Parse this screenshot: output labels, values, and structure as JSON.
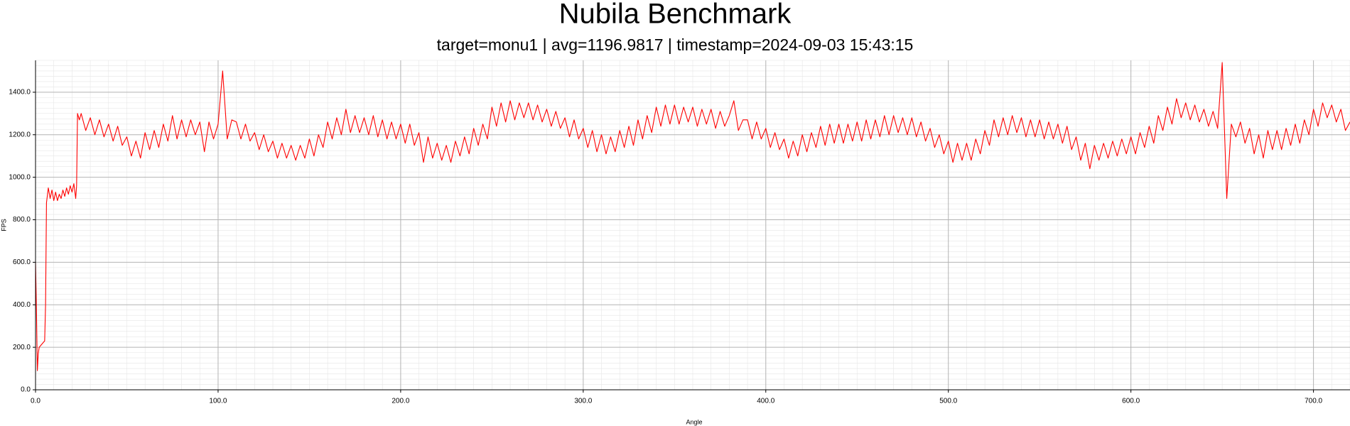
{
  "chart_data": {
    "type": "line",
    "title": "Nubila Benchmark",
    "subtitle": "target=monu1 | avg=1196.9817 | timestamp=2024-09-03 15:43:15",
    "x_label": "Angle",
    "y_label": "FPS",
    "color": "#ff0000",
    "grid": true,
    "xlim": [
      0,
      720
    ],
    "ylim": [
      0,
      1550
    ],
    "xticks": [
      {
        "value": 0,
        "label": "0.0"
      },
      {
        "value": 100,
        "label": "100.0"
      },
      {
        "value": 200,
        "label": "200.0"
      },
      {
        "value": 300,
        "label": "300.0"
      },
      {
        "value": 400,
        "label": "400.0"
      },
      {
        "value": 500,
        "label": "500.0"
      },
      {
        "value": 600,
        "label": "600.0"
      },
      {
        "value": 700,
        "label": "700.0"
      }
    ],
    "yticks": [
      {
        "value": 0,
        "label": "0.0"
      },
      {
        "value": 200,
        "label": "200.0"
      },
      {
        "value": 400,
        "label": "400.0"
      },
      {
        "value": 600,
        "label": "600.0"
      },
      {
        "value": 800,
        "label": "800.0"
      },
      {
        "value": 1000,
        "label": "1000.0"
      },
      {
        "value": 1200,
        "label": "1200.0"
      },
      {
        "value": 1400,
        "label": "1400.0"
      }
    ],
    "x": [
      0,
      0.5,
      1,
      1.5,
      2,
      3,
      4,
      5,
      5.5,
      6,
      7,
      8,
      9,
      10,
      11,
      12,
      13,
      14,
      15,
      16,
      17,
      18,
      19,
      20,
      21,
      22,
      22.5,
      23,
      24,
      25,
      27.5,
      30,
      32.5,
      35,
      37.5,
      40,
      42.5,
      45,
      47.5,
      50,
      52.5,
      55,
      57.5,
      60,
      62.5,
      65,
      67.5,
      70,
      72.5,
      75,
      77.5,
      80,
      82.5,
      85,
      87.5,
      90,
      92.5,
      95,
      97.5,
      100,
      102.5,
      105,
      107.5,
      110,
      112.5,
      115,
      117.5,
      120,
      122.5,
      125,
      127.5,
      130,
      132.5,
      135,
      137.5,
      140,
      142.5,
      145,
      147.5,
      150,
      152.5,
      155,
      157.5,
      160,
      162.5,
      165,
      167.5,
      170,
      172.5,
      175,
      177.5,
      180,
      182.5,
      185,
      187.5,
      190,
      192.5,
      195,
      197.5,
      200,
      202.5,
      205,
      207.5,
      210,
      212.5,
      215,
      217.5,
      220,
      222.5,
      225,
      227.5,
      230,
      232.5,
      235,
      237.5,
      240,
      242.5,
      245,
      247.5,
      250,
      252.5,
      255,
      257.5,
      260,
      262.5,
      265,
      267.5,
      270,
      272.5,
      275,
      277.5,
      280,
      282.5,
      285,
      287.5,
      290,
      292.5,
      295,
      297.5,
      300,
      302.5,
      305,
      307.5,
      310,
      312.5,
      315,
      317.5,
      320,
      322.5,
      325,
      327.5,
      330,
      332.5,
      335,
      337.5,
      340,
      342.5,
      345,
      347.5,
      350,
      352.5,
      355,
      357.5,
      360,
      362.5,
      365,
      367.5,
      370,
      372.5,
      375,
      377.5,
      380,
      382.5,
      385,
      387.5,
      390,
      392.5,
      395,
      397.5,
      400,
      402.5,
      405,
      407.5,
      410,
      412.5,
      415,
      417.5,
      420,
      422.5,
      425,
      427.5,
      430,
      432.5,
      435,
      437.5,
      440,
      442.5,
      445,
      447.5,
      450,
      452.5,
      455,
      457.5,
      460,
      462.5,
      465,
      467.5,
      470,
      472.5,
      475,
      477.5,
      480,
      482.5,
      485,
      487.5,
      490,
      492.5,
      495,
      497.5,
      500,
      502.5,
      505,
      507.5,
      510,
      512.5,
      515,
      517.5,
      520,
      522.5,
      525,
      527.5,
      530,
      532.5,
      535,
      537.5,
      540,
      542.5,
      545,
      547.5,
      550,
      552.5,
      555,
      557.5,
      560,
      562.5,
      565,
      567.5,
      570,
      572.5,
      575,
      577.5,
      580,
      582.5,
      585,
      587.5,
      590,
      592.5,
      595,
      597.5,
      600,
      602.5,
      605,
      607.5,
      610,
      612.5,
      615,
      617.5,
      620,
      622.5,
      625,
      627.5,
      630,
      632.5,
      635,
      637.5,
      640,
      642.5,
      645,
      647.5,
      650,
      652.5,
      655,
      657.5,
      660,
      662.5,
      665,
      667.5,
      670,
      672.5,
      675,
      677.5,
      680,
      682.5,
      685,
      687.5,
      690,
      692.5,
      695,
      697.5,
      700,
      702.5,
      705,
      707.5,
      710,
      712.5,
      715,
      717.5,
      720
    ],
    "values": [
      600,
      380,
      90,
      170,
      200,
      210,
      220,
      230,
      400,
      880,
      950,
      900,
      940,
      890,
      930,
      890,
      920,
      900,
      940,
      910,
      950,
      920,
      960,
      930,
      970,
      900,
      960,
      1300,
      1270,
      1300,
      1220,
      1280,
      1200,
      1270,
      1190,
      1250,
      1170,
      1240,
      1150,
      1190,
      1100,
      1170,
      1090,
      1210,
      1130,
      1220,
      1140,
      1250,
      1170,
      1290,
      1180,
      1270,
      1190,
      1270,
      1200,
      1260,
      1120,
      1260,
      1180,
      1250,
      1500,
      1180,
      1270,
      1260,
      1180,
      1250,
      1170,
      1210,
      1130,
      1200,
      1120,
      1170,
      1090,
      1160,
      1090,
      1150,
      1080,
      1150,
      1090,
      1180,
      1100,
      1200,
      1140,
      1260,
      1180,
      1280,
      1200,
      1320,
      1210,
      1290,
      1210,
      1280,
      1200,
      1290,
      1190,
      1270,
      1180,
      1260,
      1180,
      1250,
      1160,
      1250,
      1150,
      1210,
      1070,
      1190,
      1090,
      1160,
      1080,
      1150,
      1070,
      1170,
      1100,
      1190,
      1110,
      1230,
      1150,
      1250,
      1180,
      1330,
      1240,
      1350,
      1260,
      1360,
      1270,
      1350,
      1280,
      1350,
      1270,
      1340,
      1260,
      1320,
      1240,
      1310,
      1230,
      1280,
      1190,
      1270,
      1180,
      1230,
      1140,
      1220,
      1120,
      1200,
      1110,
      1190,
      1120,
      1220,
      1140,
      1240,
      1150,
      1270,
      1180,
      1290,
      1210,
      1330,
      1240,
      1340,
      1250,
      1340,
      1250,
      1330,
      1260,
      1330,
      1240,
      1320,
      1250,
      1320,
      1230,
      1310,
      1240,
      1290,
      1360,
      1220,
      1270,
      1270,
      1180,
      1260,
      1180,
      1230,
      1140,
      1210,
      1130,
      1180,
      1090,
      1170,
      1100,
      1200,
      1120,
      1210,
      1140,
      1240,
      1150,
      1250,
      1160,
      1250,
      1160,
      1250,
      1170,
      1260,
      1170,
      1270,
      1180,
      1270,
      1190,
      1290,
      1200,
      1290,
      1210,
      1280,
      1200,
      1280,
      1190,
      1260,
      1170,
      1230,
      1140,
      1200,
      1110,
      1170,
      1070,
      1160,
      1080,
      1160,
      1080,
      1180,
      1110,
      1220,
      1150,
      1270,
      1190,
      1280,
      1200,
      1290,
      1210,
      1280,
      1190,
      1270,
      1190,
      1270,
      1180,
      1260,
      1180,
      1250,
      1160,
      1240,
      1130,
      1190,
      1080,
      1160,
      1040,
      1150,
      1080,
      1160,
      1090,
      1170,
      1100,
      1180,
      1110,
      1190,
      1110,
      1210,
      1140,
      1240,
      1160,
      1290,
      1220,
      1330,
      1250,
      1370,
      1280,
      1350,
      1270,
      1340,
      1260,
      1320,
      1240,
      1310,
      1230,
      1540,
      900,
      1250,
      1190,
      1260,
      1160,
      1230,
      1110,
      1200,
      1090,
      1220,
      1130,
      1220,
      1130,
      1230,
      1150,
      1250,
      1160,
      1270,
      1200,
      1320,
      1240,
      1350,
      1280,
      1340,
      1260,
      1320,
      1220,
      1260
    ]
  }
}
